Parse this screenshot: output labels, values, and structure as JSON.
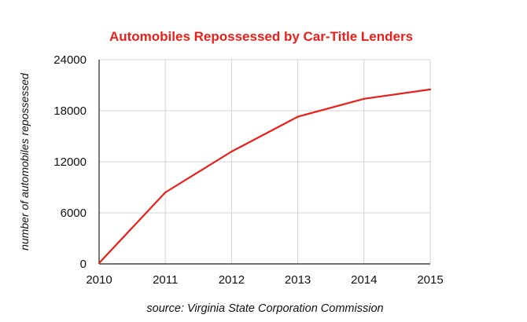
{
  "colors": {
    "accent": "#e8201a",
    "grid": "#d3d3d3",
    "axis": "#222222"
  },
  "chart_data": {
    "type": "line",
    "title": "Automobiles Repossessed by Car-Title Lenders",
    "xlabel": "",
    "ylabel": "number of automobiles repossessed",
    "source": "source: Virginia State Corporation Commission",
    "x": [
      2010,
      2011,
      2012,
      2013,
      2014,
      2015
    ],
    "x_tick_labels": [
      "2010",
      "2011",
      "2012",
      "2013",
      "2014",
      "2015"
    ],
    "y_ticks": [
      0,
      6000,
      12000,
      18000,
      24000
    ],
    "y_tick_labels": [
      "0",
      "6000",
      "12000",
      "18000",
      "24000"
    ],
    "ylim": [
      0,
      24000
    ],
    "grid": true,
    "series": [
      {
        "values": [
          100,
          8400,
          13200,
          17300,
          19400,
          20500
        ]
      }
    ]
  }
}
